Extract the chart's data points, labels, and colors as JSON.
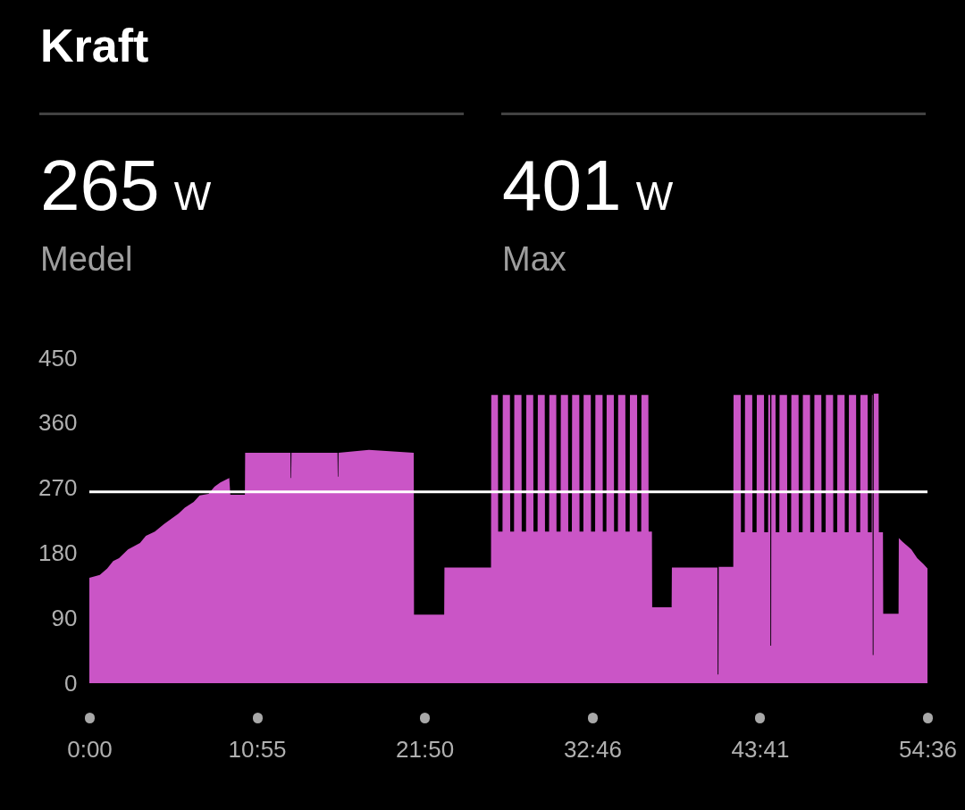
{
  "chart_data": {
    "type": "area",
    "title": "Kraft",
    "annotations": [
      "265 W",
      "Medel",
      "401 W",
      "Max"
    ],
    "x": [
      0,
      41,
      70,
      93,
      116,
      151,
      198,
      221,
      256,
      291,
      326,
      349,
      373,
      408,
      431,
      466,
      489,
      512,
      547,
      551,
      608,
      609,
      786,
      787,
      789,
      790,
      970,
      971,
      973,
      974,
      1093,
      1268,
      1269,
      1387,
      1388,
      1570,
      1571,
      1597,
      1598,
      1615,
      1616,
      1644,
      1645,
      1660,
      1661,
      1689,
      1690,
      1707,
      1708,
      1735,
      1736,
      1752,
      1753,
      1780,
      1781,
      1797,
      1798,
      1825,
      1826,
      1842,
      1843,
      1871,
      1872,
      1886,
      1887,
      1915,
      1916,
      1931,
      1932,
      1960,
      1961,
      1977,
      1978,
      2006,
      2007,
      2021,
      2022,
      2050,
      2051,
      2066,
      2067,
      2095,
      2096,
      2112,
      2113,
      2141,
      2142,
      2157,
      2158,
      2185,
      2186,
      2199,
      2200,
      2276,
      2277,
      2455,
      2456,
      2459,
      2460,
      2517,
      2518,
      2546,
      2547,
      2562,
      2563,
      2591,
      2592,
      2608,
      2609,
      2637,
      2638,
      2653,
      2654,
      2661,
      2662,
      2665,
      2666,
      2682,
      2683,
      2697,
      2698,
      2727,
      2728,
      2743,
      2744,
      2772,
      2773,
      2788,
      2789,
      2817,
      2818,
      2833,
      2834,
      2861,
      2862,
      2878,
      2879,
      2907,
      2908,
      2923,
      2924,
      2952,
      2953,
      2968,
      2969,
      2997,
      2998,
      3013,
      3014,
      3042,
      3043,
      3058,
      3059,
      3061,
      3062,
      3065,
      3066,
      3085,
      3086,
      3102,
      3103,
      3163,
      3164,
      3178,
      3213,
      3236,
      3260,
      3276
    ],
    "series": [
      {
        "color": "#ca55c6",
        "values": [
          146,
          150,
          159,
          169,
          173,
          185,
          194,
          204,
          210,
          220,
          229,
          235,
          243,
          251,
          260,
          262,
          272,
          278,
          284,
          261,
          261,
          319,
          319,
          284,
          284,
          319,
          319,
          286,
          286,
          319,
          323,
          319,
          95,
          95,
          160,
          160,
          399,
          399,
          210,
          210,
          399,
          399,
          210,
          210,
          399,
          399,
          210,
          210,
          399,
          399,
          210,
          210,
          399,
          399,
          210,
          210,
          399,
          399,
          210,
          210,
          399,
          399,
          210,
          210,
          399,
          399,
          210,
          210,
          399,
          399,
          210,
          210,
          399,
          399,
          210,
          210,
          399,
          399,
          210,
          210,
          399,
          399,
          210,
          210,
          399,
          399,
          210,
          210,
          399,
          399,
          210,
          210,
          105,
          105,
          160,
          160,
          12,
          12,
          161,
          161,
          399,
          399,
          209,
          209,
          399,
          399,
          209,
          209,
          399,
          399,
          209,
          209,
          399,
          399,
          52,
          52,
          399,
          399,
          209,
          209,
          399,
          399,
          209,
          209,
          399,
          399,
          209,
          209,
          399,
          399,
          209,
          209,
          399,
          399,
          209,
          209,
          399,
          399,
          209,
          209,
          399,
          399,
          209,
          209,
          399,
          399,
          209,
          209,
          399,
          399,
          209,
          209,
          399,
          399,
          39,
          39,
          401,
          401,
          209,
          209,
          96,
          96,
          201,
          196,
          185,
          173,
          165,
          159
        ]
      }
    ],
    "xlim": [
      0,
      3276
    ],
    "xticks": [
      {
        "value": 0,
        "label": "0:00"
      },
      {
        "value": 655,
        "label": "10:55"
      },
      {
        "value": 1310,
        "label": "21:50"
      },
      {
        "value": 1966,
        "label": "32:46"
      },
      {
        "value": 2621,
        "label": "43:41"
      },
      {
        "value": 3276,
        "label": "54:36"
      }
    ],
    "ylim": [
      0,
      450
    ],
    "yticks": [
      0,
      90,
      180,
      270,
      360,
      450
    ],
    "ref_lines": [
      {
        "axis": "y",
        "value": 265,
        "color": "#ffffff"
      }
    ]
  }
}
